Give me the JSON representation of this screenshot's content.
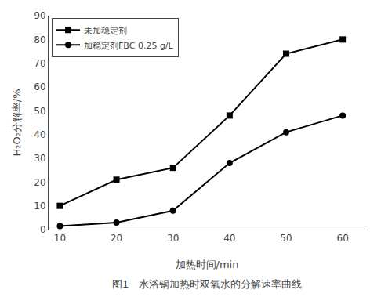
{
  "chart_data": {
    "type": "line",
    "x": [
      10,
      20,
      30,
      40,
      50,
      60
    ],
    "series": [
      {
        "name": "未加稳定剂",
        "color": "#000000",
        "marker": "square",
        "values": [
          10,
          21,
          26,
          48,
          74,
          80
        ]
      },
      {
        "name": "加稳定剂FBC 0.25 g/L",
        "color": "#000000",
        "marker": "circle",
        "values": [
          1.5,
          3,
          8,
          28,
          41,
          48
        ]
      }
    ],
    "xlabel": "加热时间/min",
    "ylabel": "H₂O₂分解率/%",
    "caption": "图1   水浴锅加热时双氧水的分解速率曲线",
    "xlim": [
      8,
      64
    ],
    "xticks": [
      10,
      20,
      30,
      40,
      50,
      60
    ],
    "ylim": [
      0,
      90
    ],
    "yticks": [
      0,
      10,
      20,
      30,
      40,
      50,
      60,
      70,
      80,
      90
    ],
    "legend": "upper left",
    "grid": false
  }
}
